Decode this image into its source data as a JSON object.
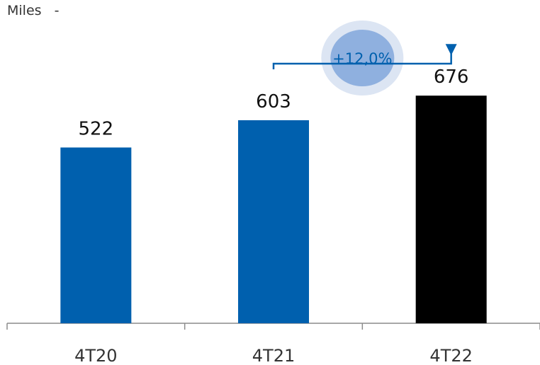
{
  "unit_label": "Miles   -",
  "colors": {
    "bar_default": "#0060AE",
    "bar_highlight": "#000000",
    "bubble_outer": "#DCE5F3",
    "bubble_inner": "#8FB0DF",
    "bracket": "#0060AE",
    "axis": "#8C8C8C"
  },
  "chart_data": {
    "type": "bar",
    "categories": [
      "4T20",
      "4T21",
      "4T22"
    ],
    "values": [
      522,
      603,
      676
    ],
    "data_labels": [
      "522",
      "603",
      "676"
    ],
    "highlight_index": 2,
    "ylim": [
      0,
      960
    ],
    "grid": false,
    "annotation": {
      "text": "+12,0%",
      "from_category": "4T21",
      "to_category": "4T22"
    }
  }
}
